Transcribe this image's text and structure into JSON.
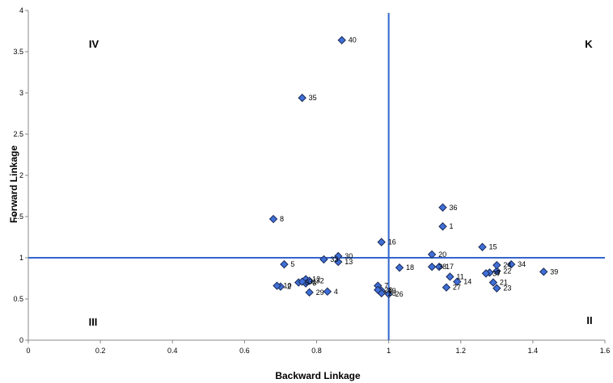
{
  "chart_data": {
    "type": "scatter",
    "title": "",
    "xlabel": "Backward Linkage",
    "ylabel": "Forward Linkage",
    "xlim": [
      0,
      1.6
    ],
    "ylim": [
      0,
      4
    ],
    "xticks": [
      "0",
      "0.2",
      "0.4",
      "0.6",
      "0.8",
      "1",
      "1.2",
      "1.4",
      "1.6"
    ],
    "yticks": [
      "0",
      "0.5",
      "1",
      "1.5",
      "2",
      "2.5",
      "3",
      "3.5",
      "4"
    ],
    "reference_lines": {
      "x": 1,
      "y": 1,
      "color": "#3366cc"
    },
    "quadrant_labels": {
      "top_left": "IV",
      "top_right": "K",
      "bottom_left": "III",
      "bottom_right": "II"
    },
    "marker_color": "#3f6fd8",
    "grid": false,
    "points": [
      {
        "label": "1",
        "x": 1.15,
        "y": 1.38
      },
      {
        "label": "2",
        "x": 0.7,
        "y": 0.65
      },
      {
        "label": "3",
        "x": 0.75,
        "y": 0.7
      },
      {
        "label": "4",
        "x": 0.83,
        "y": 0.59
      },
      {
        "label": "5",
        "x": 0.71,
        "y": 0.92
      },
      {
        "label": "6",
        "x": 0.77,
        "y": 0.69
      },
      {
        "label": "7",
        "x": 0.97,
        "y": 0.66
      },
      {
        "label": "8",
        "x": 0.68,
        "y": 1.47
      },
      {
        "label": "9",
        "x": 1.28,
        "y": 0.82
      },
      {
        "label": "10",
        "x": 0.69,
        "y": 0.66
      },
      {
        "label": "11",
        "x": 1.17,
        "y": 0.77
      },
      {
        "label": "12",
        "x": 0.77,
        "y": 0.74
      },
      {
        "label": "13",
        "x": 0.86,
        "y": 0.95
      },
      {
        "label": "14",
        "x": 1.19,
        "y": 0.71
      },
      {
        "label": "15",
        "x": 1.26,
        "y": 1.13
      },
      {
        "label": "16",
        "x": 0.98,
        "y": 1.19
      },
      {
        "label": "17",
        "x": 1.14,
        "y": 0.89
      },
      {
        "label": "18",
        "x": 1.03,
        "y": 0.88
      },
      {
        "label": "19",
        "x": 0.98,
        "y": 0.6
      },
      {
        "label": "20",
        "x": 1.12,
        "y": 1.04
      },
      {
        "label": "21",
        "x": 1.29,
        "y": 0.7
      },
      {
        "label": "22",
        "x": 1.3,
        "y": 0.84
      },
      {
        "label": "23",
        "x": 1.3,
        "y": 0.63
      },
      {
        "label": "24",
        "x": 1.3,
        "y": 0.91
      },
      {
        "label": "25",
        "x": 0.98,
        "y": 0.57
      },
      {
        "label": "26",
        "x": 1.0,
        "y": 0.56
      },
      {
        "label": "27",
        "x": 1.16,
        "y": 0.64
      },
      {
        "label": "28",
        "x": 0.97,
        "y": 0.61
      },
      {
        "label": "29",
        "x": 0.78,
        "y": 0.58
      },
      {
        "label": "30",
        "x": 0.86,
        "y": 1.02
      },
      {
        "label": "31",
        "x": 0.76,
        "y": 0.71
      },
      {
        "label": "32",
        "x": 0.78,
        "y": 0.72
      },
      {
        "label": "33",
        "x": 0.82,
        "y": 0.98
      },
      {
        "label": "34",
        "x": 1.34,
        "y": 0.92
      },
      {
        "label": "35",
        "x": 0.76,
        "y": 2.94
      },
      {
        "label": "36",
        "x": 1.15,
        "y": 1.61
      },
      {
        "label": "37",
        "x": 1.27,
        "y": 0.81
      },
      {
        "label": "38",
        "x": 1.12,
        "y": 0.89
      },
      {
        "label": "39",
        "x": 1.43,
        "y": 0.83
      },
      {
        "label": "40",
        "x": 0.87,
        "y": 3.64
      }
    ]
  }
}
